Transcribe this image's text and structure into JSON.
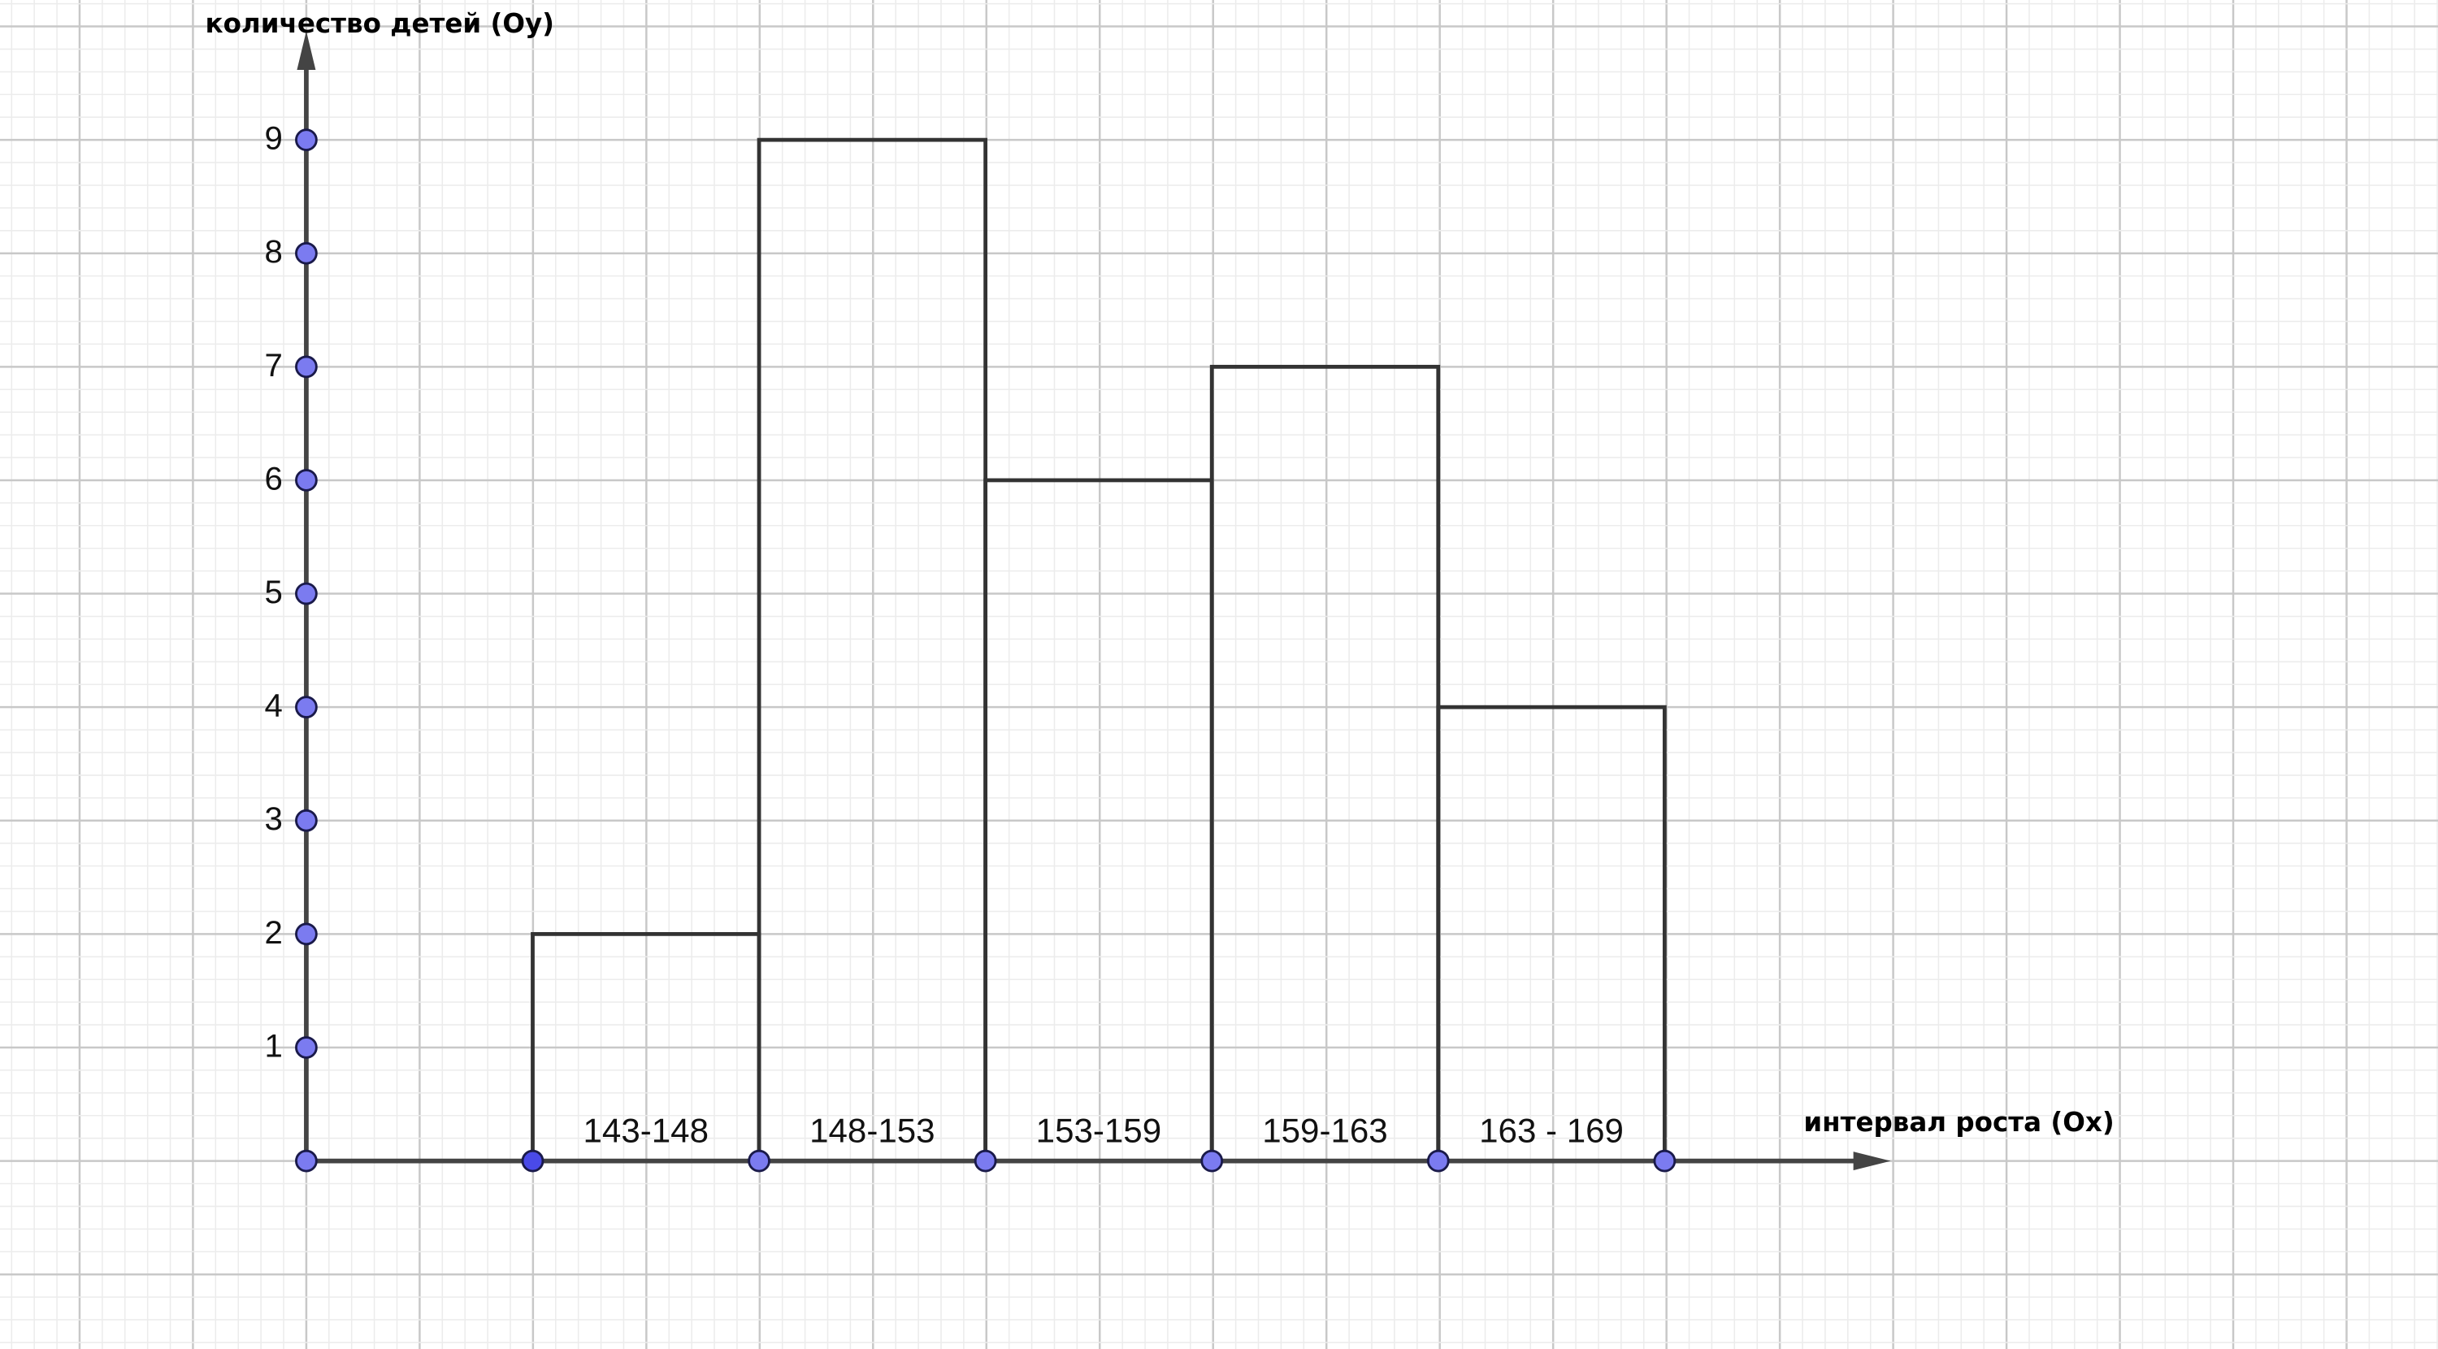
{
  "chart_data": {
    "type": "bar",
    "subtype": "histogram",
    "categories": [
      "143-148",
      "148-153",
      "153-159",
      "159-163",
      "163 - 169"
    ],
    "values": [
      2,
      9,
      6,
      7,
      4
    ],
    "xlabel": "интервал роста (Ox)",
    "ylabel": "количество детей (Oy)",
    "yticks": [
      "1",
      "2",
      "3",
      "4",
      "5",
      "6",
      "7",
      "8",
      "9"
    ],
    "ylim": [
      0,
      9
    ],
    "grid": true,
    "colors": {
      "bar_outline": "#333333",
      "point_fill": "#7b7bf0",
      "point_stroke": "#1a1a4a",
      "grid": "#cfcfcf"
    }
  }
}
